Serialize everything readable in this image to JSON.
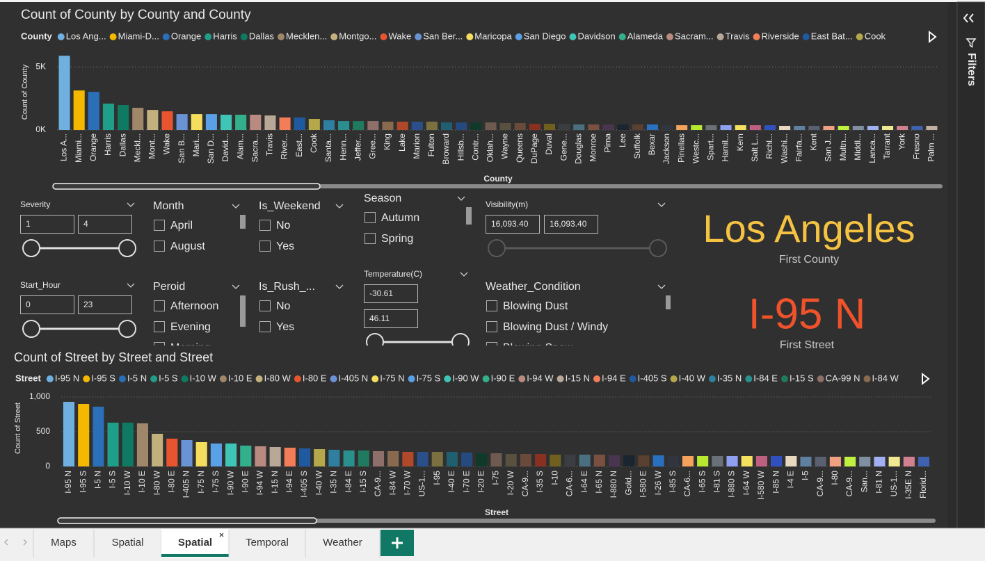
{
  "chart_data": [
    {
      "type": "bar",
      "title": "Count of County by County and County",
      "legend_title": "County",
      "legend": [
        {
          "name": "Los Ang...",
          "color": "#6fb0e0"
        },
        {
          "name": "Miami-D...",
          "color": "#f5b800"
        },
        {
          "name": "Orange",
          "color": "#2b6fb8"
        },
        {
          "name": "Harris",
          "color": "#1f9e89"
        },
        {
          "name": "Dallas",
          "color": "#0f7a62"
        },
        {
          "name": "Mecklen...",
          "color": "#a0876a"
        },
        {
          "name": "Montgo...",
          "color": "#c3b07c"
        },
        {
          "name": "Wake",
          "color": "#e8542f"
        },
        {
          "name": "San Ber...",
          "color": "#6a93d6"
        },
        {
          "name": "Maricopa",
          "color": "#f5de5e"
        },
        {
          "name": "San Diego",
          "color": "#5aa0e6"
        },
        {
          "name": "Davidson",
          "color": "#3fc5b6"
        },
        {
          "name": "Alameda",
          "color": "#32b08c"
        },
        {
          "name": "Sacram...",
          "color": "#b88a80"
        },
        {
          "name": "Travis",
          "color": "#b9a898"
        },
        {
          "name": "Riverside",
          "color": "#f27d58"
        },
        {
          "name": "East Bat...",
          "color": "#1f5aa0"
        },
        {
          "name": "Cook",
          "color": "#b5a84b"
        }
      ],
      "x_label": "County",
      "y_label": "Count of County",
      "categories": [
        "Los A...",
        "Miami...",
        "Orange",
        "Harris",
        "Dallas",
        "Meckl...",
        "Mont...",
        "Wake",
        "San B...",
        "Mari...",
        "San D...",
        "David...",
        "Alam...",
        "Sacra...",
        "Travis",
        "River...",
        "East...",
        "Cook",
        "Santa...",
        "Henn...",
        "Jeffer...",
        "Gree...",
        "King",
        "Lake",
        "Marion",
        "Fulton",
        "Broward",
        "Hillsb...",
        "Contr...",
        "Oklah...",
        "Wayne",
        "Queens",
        "DuPage",
        "Duval",
        "Gene...",
        "Douglas",
        "Monroe",
        "Pima",
        "Lee",
        "Suffolk",
        "Bexar",
        "Jackson",
        "Pinellas",
        "Westc...",
        "Spart...",
        "Hamil...",
        "Kern",
        "Salt L...",
        "Richl...",
        "Washi...",
        "Fairfa...",
        "Kent",
        "San J...",
        "Multn...",
        "Middl...",
        "Lanca...",
        "Tarrant",
        "York",
        "Fresno",
        "Palm ..."
      ],
      "values": [
        5880,
        3130,
        3020,
        2090,
        1980,
        1760,
        1590,
        1480,
        1260,
        1260,
        1260,
        1210,
        1210,
        1210,
        1150,
        990,
        990,
        880,
        770,
        710,
        710,
        710,
        660,
        660,
        660,
        660,
        600,
        600,
        600,
        600,
        550,
        550,
        490,
        490,
        490,
        440,
        440,
        440,
        440,
        440,
        440,
        380,
        380,
        380,
        380,
        380,
        380,
        380,
        380,
        330,
        330,
        330,
        330,
        330,
        330,
        330,
        330,
        330,
        330,
        330
      ],
      "colors": [
        "#6fb0e0",
        "#f5b800",
        "#2b6fb8",
        "#1f9e89",
        "#0f7a62",
        "#a0876a",
        "#c3b07c",
        "#e8542f",
        "#6a93d6",
        "#f5de5e",
        "#5aa0e6",
        "#3fc5b6",
        "#32b08c",
        "#b88a80",
        "#b9a898",
        "#f27d58",
        "#1f5aa0",
        "#b5a84b",
        "#2e7fa0",
        "#2a8f8f",
        "#1f7a5f",
        "#8f6f6a",
        "#8a6a4f",
        "#b0482a",
        "#2a4f8a",
        "#7a7040",
        "#1f5f6f",
        "#254a80",
        "#0f3a2a",
        "#6f5a50",
        "#5a5040",
        "#6a4a3a",
        "#8a3020",
        "#6f6020",
        "#3a3e42",
        "#4a6f80",
        "#7a5040",
        "#4a3550",
        "#1a2530",
        "#5a4030",
        "#2a70c0",
        "#303540",
        "#f5a35c",
        "#b8e830",
        "#6a7078",
        "#8fa0f0",
        "#f5e060",
        "#c06080",
        "#3050c0",
        "#e8d8c0",
        "#6080a0",
        "#5a6070",
        "#f0a080",
        "#c0f040",
        "#8090a0",
        "#a0b0f0",
        "#f0e890",
        "#d08090",
        "#4060b0",
        "#c0b0a0"
      ],
      "ylim": [
        0,
        6000
      ],
      "yticks": [
        {
          "value": 0,
          "label": "0K"
        },
        {
          "value": 5000,
          "label": "5K"
        }
      ],
      "grid": true
    },
    {
      "type": "bar",
      "title": "Count of Street by Street and Street",
      "legend_title": "Street",
      "legend": [
        {
          "name": "I-95 N",
          "color": "#6fb0e0"
        },
        {
          "name": "I-95 S",
          "color": "#f5b800"
        },
        {
          "name": "I-5 N",
          "color": "#2b6fb8"
        },
        {
          "name": "I-5 S",
          "color": "#1f9e89"
        },
        {
          "name": "I-10 W",
          "color": "#0f7a62"
        },
        {
          "name": "I-10 E",
          "color": "#a0876a"
        },
        {
          "name": "I-80 W",
          "color": "#c3b07c"
        },
        {
          "name": "I-80 E",
          "color": "#e8542f"
        },
        {
          "name": "I-405 N",
          "color": "#6a93d6"
        },
        {
          "name": "I-75 N",
          "color": "#f5de5e"
        },
        {
          "name": "I-75 S",
          "color": "#5aa0e6"
        },
        {
          "name": "I-90 W",
          "color": "#3fc5b6"
        },
        {
          "name": "I-90 E",
          "color": "#32b08c"
        },
        {
          "name": "I-94 W",
          "color": "#b88a80"
        },
        {
          "name": "I-15 N",
          "color": "#b9a898"
        },
        {
          "name": "I-94 E",
          "color": "#f27d58"
        },
        {
          "name": "I-405 S",
          "color": "#1f5aa0"
        },
        {
          "name": "I-40 W",
          "color": "#b5a84b"
        },
        {
          "name": "I-35 N",
          "color": "#2e7fa0"
        },
        {
          "name": "I-84 E",
          "color": "#2a8f8f"
        },
        {
          "name": "I-15 S",
          "color": "#1f7a5f"
        },
        {
          "name": "CA-99 N",
          "color": "#8f6f6a"
        },
        {
          "name": "I-84 W",
          "color": "#8a6a4f"
        }
      ],
      "x_label": "Street",
      "y_label": "Count of Street",
      "categories": [
        "I-95 N",
        "I-95 S",
        "I-5 N",
        "I-5 S",
        "I-10 W",
        "I-10 E",
        "I-80 W",
        "I-80 E",
        "I-405 N",
        "I-75 N",
        "I-75 S",
        "I-90 W",
        "I-90 E",
        "I-94 W",
        "I-15 N",
        "I-94 E",
        "I-405 S",
        "I-40 W",
        "I-35 N",
        "I-84 E",
        "I-15 S",
        "CA-9...",
        "I-84 W",
        "I-70 W",
        "US-1...",
        "I-95",
        "I-40 E",
        "I-70 E",
        "I-20 E",
        "I-75",
        "I-20 W",
        "CA-9...",
        "I-35 S",
        "I-10",
        "CA-6...",
        "I-64 E",
        "I-65 N",
        "I-880 N",
        "Gold...",
        "I-580 E",
        "I-26 W",
        "I-85 S",
        "CA-6...",
        "I-65 S",
        "I-81 S",
        "I-880 S",
        "I-64 W",
        "I-580 W",
        "I-85 N",
        "I-4 E",
        "I-5",
        "CA-9...",
        "I-80",
        "CA-9...",
        "San...",
        "I-81 N",
        "US-1...",
        "I-35E N",
        "Florid..."
      ],
      "values": [
        930,
        900,
        860,
        630,
        630,
        620,
        470,
        400,
        380,
        350,
        330,
        330,
        300,
        290,
        280,
        270,
        260,
        250,
        240,
        230,
        230,
        220,
        220,
        210,
        210,
        210,
        210,
        200,
        190,
        190,
        180,
        180,
        180,
        170,
        170,
        170,
        170,
        160,
        160,
        160,
        160,
        150,
        150,
        150,
        150,
        150,
        150,
        150,
        150,
        150,
        140,
        140,
        140,
        140,
        140,
        140,
        140,
        140,
        140
      ],
      "colors": [
        "#6fb0e0",
        "#f5b800",
        "#2b6fb8",
        "#1f9e89",
        "#0f7a62",
        "#a0876a",
        "#c3b07c",
        "#e8542f",
        "#6a93d6",
        "#f5de5e",
        "#5aa0e6",
        "#3fc5b6",
        "#32b08c",
        "#b88a80",
        "#b9a898",
        "#f27d58",
        "#1f5aa0",
        "#b5a84b",
        "#2e7fa0",
        "#2a8f8f",
        "#1f7a5f",
        "#8f6f6a",
        "#8a6a4f",
        "#b0482a",
        "#2a4f8a",
        "#7a7040",
        "#1f5f6f",
        "#254a80",
        "#0f3a2a",
        "#6f5a50",
        "#5a5040",
        "#6a4a3a",
        "#8a3020",
        "#6f6020",
        "#3a3e42",
        "#4a6f80",
        "#7a5040",
        "#4a3550",
        "#1a2530",
        "#5a4030",
        "#2a70c0",
        "#303540",
        "#f5a35c",
        "#b8e830",
        "#6a7078",
        "#8fa0f0",
        "#f5e060",
        "#c06080",
        "#3050c0",
        "#e8d8c0",
        "#6080a0",
        "#5a6070",
        "#f0a080",
        "#c0f040",
        "#8090a0",
        "#a0b0f0",
        "#f0e890",
        "#d08090",
        "#4060b0"
      ],
      "ylim": [
        0,
        1100
      ],
      "yticks": [
        0,
        500,
        {
          "value": 1000,
          "label": "1,000"
        }
      ],
      "grid": true
    }
  ],
  "slicers": [
    {
      "title": "Severity",
      "inputs": [
        "1",
        "4"
      ]
    },
    {
      "title": "Month",
      "options": [
        "April",
        "August"
      ]
    },
    {
      "title": "Is_Weekend",
      "options": [
        "No",
        "Yes"
      ]
    },
    {
      "title": "Season",
      "options": [
        "Autumn",
        "Spring"
      ]
    },
    {
      "title": "Visibility(m)",
      "inputs": [
        "16,093.40",
        "16,093.40"
      ]
    },
    {
      "title": "Start_Hour",
      "inputs": [
        "0",
        "23"
      ]
    },
    {
      "title": "Peroid",
      "options": [
        "Afternoon",
        "Evening",
        "Morning"
      ]
    },
    {
      "title": "Is_Rush_...",
      "options": [
        "No",
        "Yes"
      ]
    },
    {
      "title": "Temperature(C)",
      "inputs": [
        "-30.61",
        "46.11"
      ]
    },
    {
      "title": "Weather_Condition",
      "options": [
        "Blowing Dust",
        "Blowing Dust / Windy",
        "Blowing Snow"
      ]
    }
  ],
  "cards": [
    {
      "value": "Los Angeles",
      "label": "First County",
      "color": "#f5c242"
    },
    {
      "value": "I-95 N",
      "label": "First Street",
      "color": "#f0532c"
    }
  ],
  "filters_pane": {
    "title": "Filters"
  },
  "tabs": [
    {
      "label": "Maps",
      "active": false
    },
    {
      "label": "Spatial",
      "active": false
    },
    {
      "label": "Spatial",
      "active": true
    },
    {
      "label": "Temporal",
      "active": false
    },
    {
      "label": "Weather",
      "active": false
    }
  ]
}
